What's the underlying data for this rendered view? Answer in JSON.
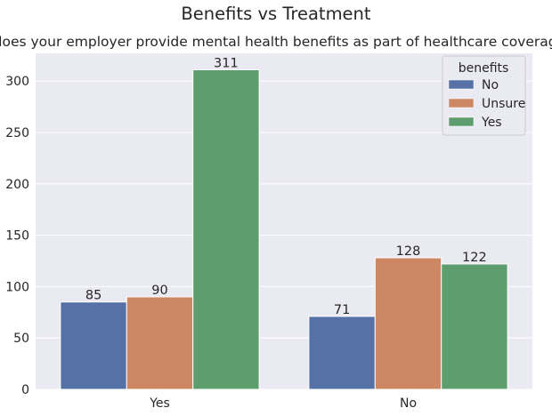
{
  "chart_data": {
    "type": "bar",
    "title": "Benefits vs Treatment",
    "subtitle": "does your employer provide mental health benefits as part of healthcare coverage?",
    "xlabel": "",
    "ylabel": "",
    "categories": [
      "Yes",
      "No"
    ],
    "series": [
      {
        "name": "No",
        "values": [
          85,
          71
        ],
        "color": "#5571a5"
      },
      {
        "name": "Unsure",
        "values": [
          90,
          128
        ],
        "color": "#cd8763"
      },
      {
        "name": "Yes",
        "values": [
          311,
          122
        ],
        "color": "#5e9e6e"
      }
    ],
    "ylim": [
      0,
      327
    ],
    "yticks": [
      0,
      50,
      100,
      150,
      200,
      250,
      300
    ],
    "grid": true,
    "legend": {
      "title": "benefits",
      "position": "top-right"
    },
    "background_color": "#eaeaf2"
  }
}
